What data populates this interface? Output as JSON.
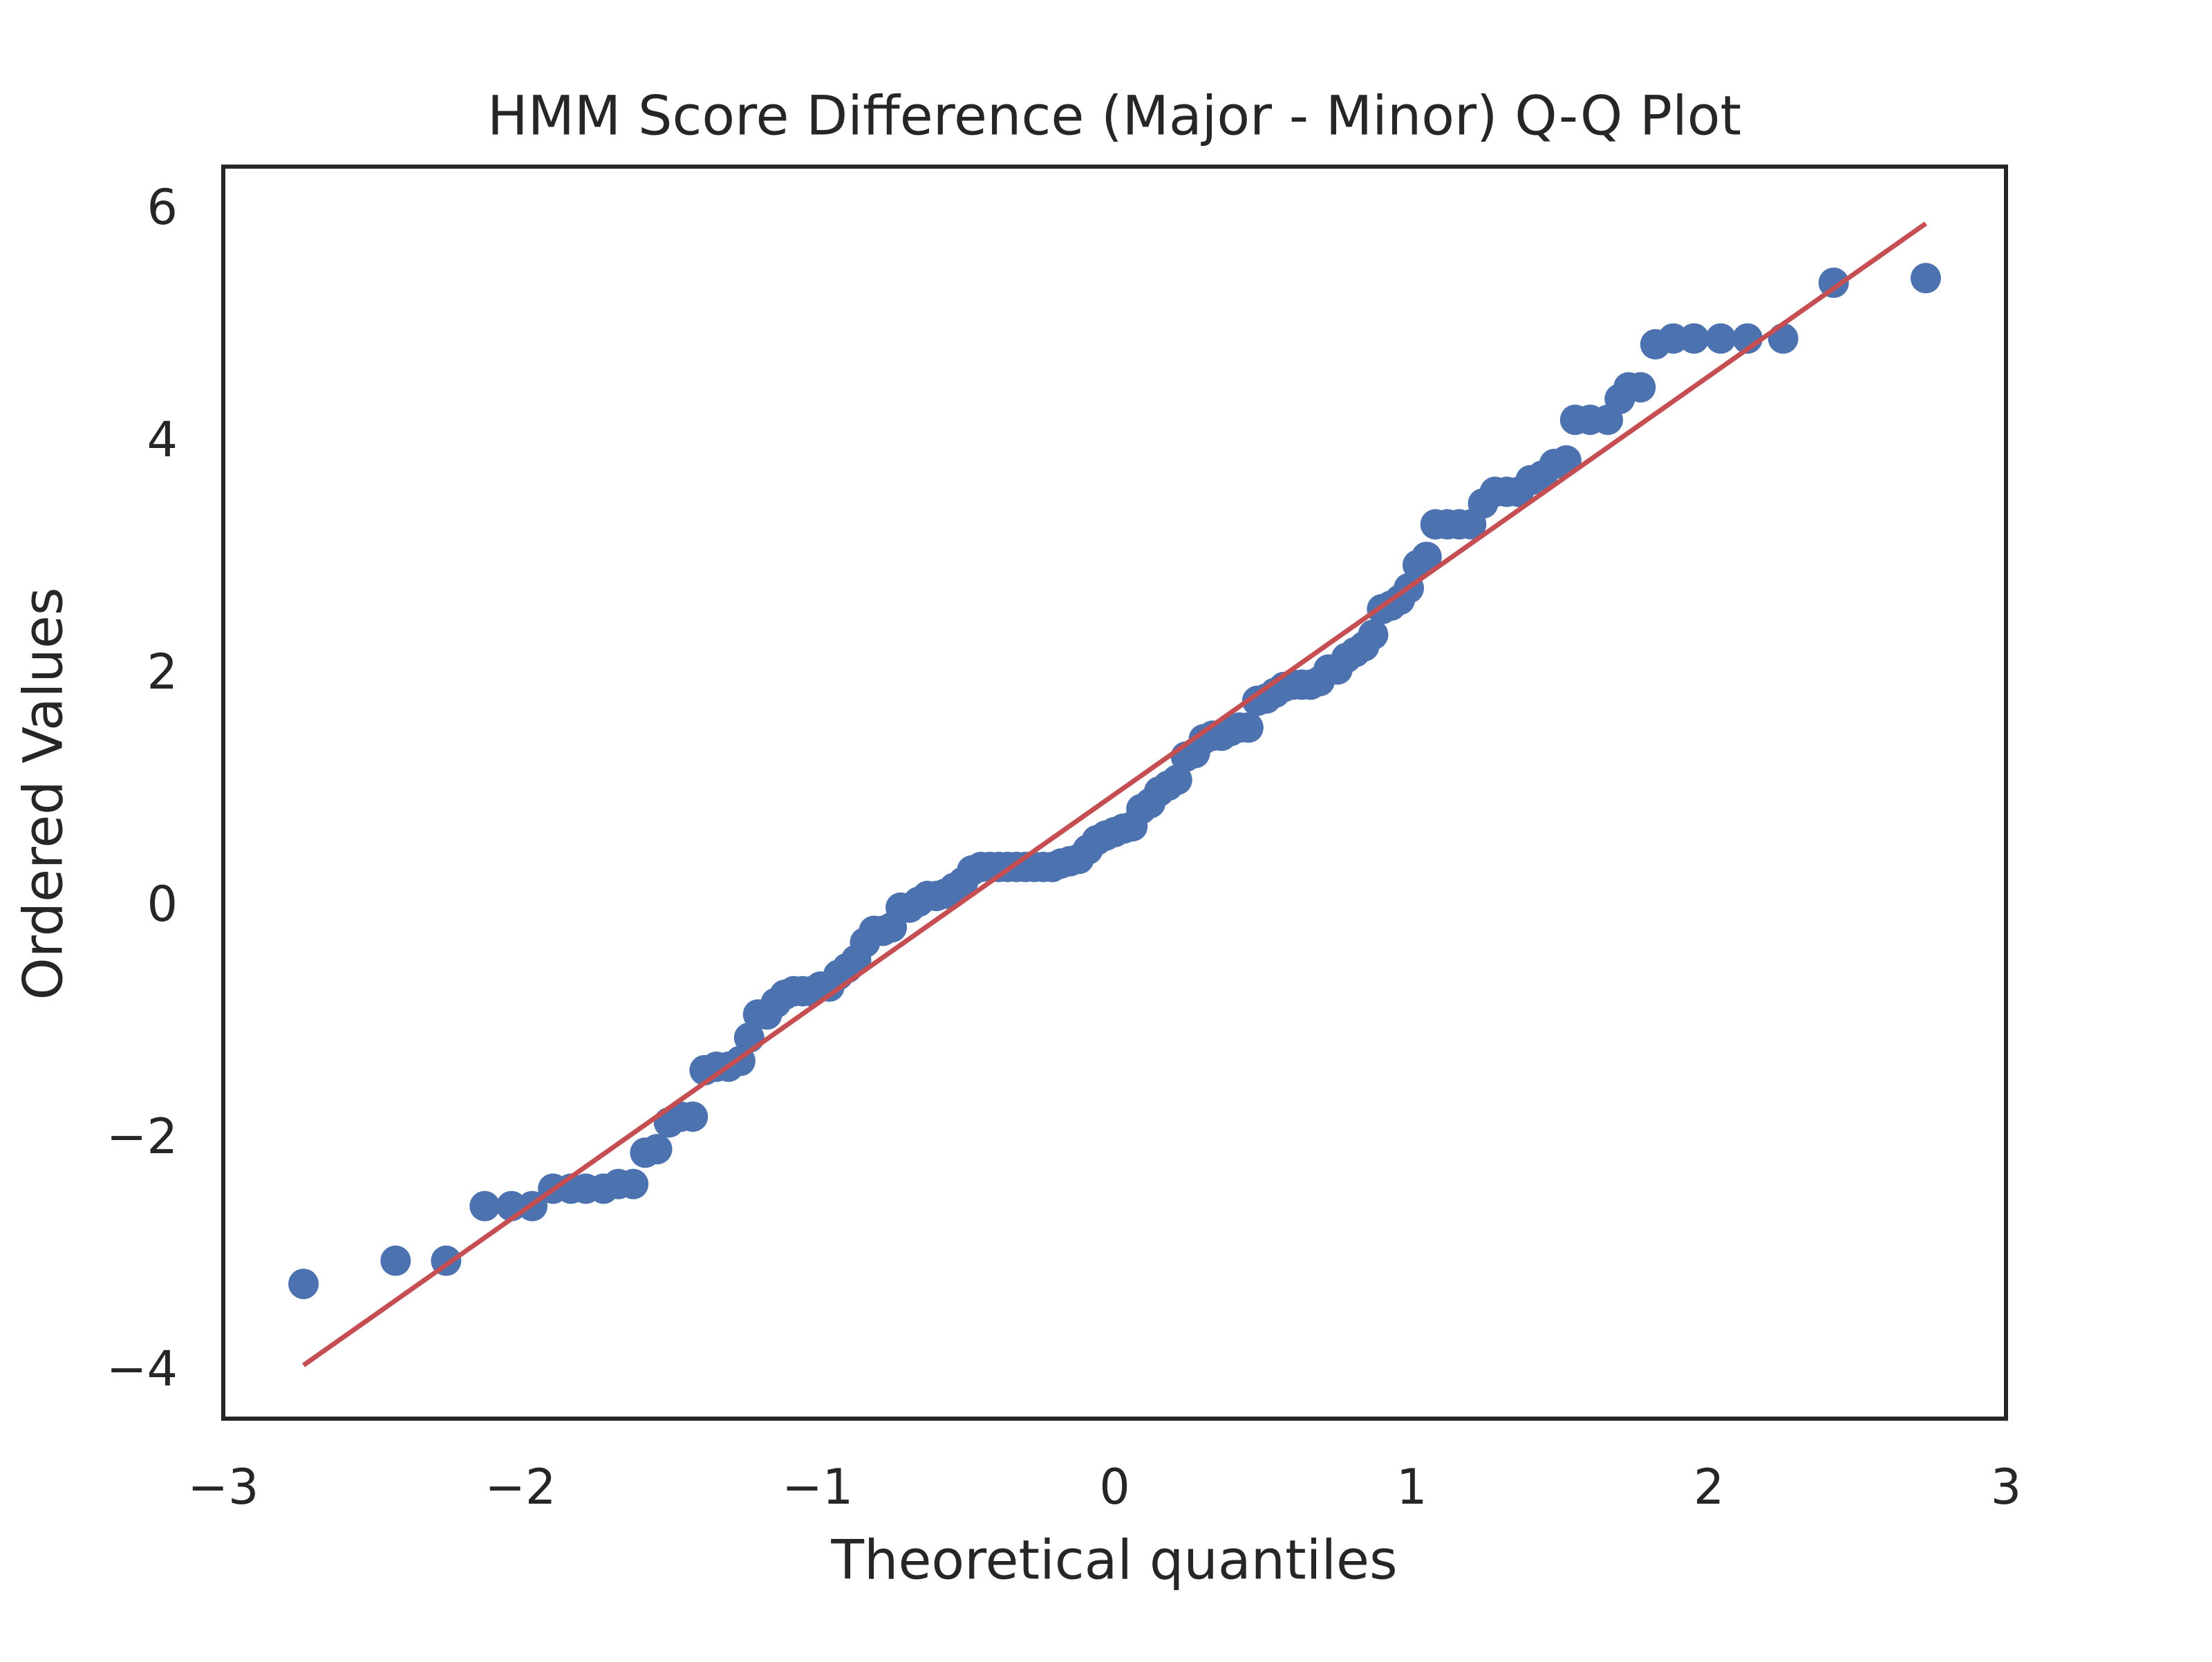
{
  "chart_data": {
    "type": "scatter",
    "title": "HMM Score Difference (Major - Minor) Q-Q Plot",
    "x_label": "Theoretical quantiles",
    "y_label": "Ordered Values",
    "color": "#4c72b0",
    "x": [
      -2.73,
      -2.42,
      -2.25,
      -2.12,
      -2.03,
      -1.96,
      -1.89,
      -1.83,
      -1.78,
      -1.72,
      -1.67,
      -1.62,
      -1.58,
      -1.54,
      -1.5,
      -1.46,
      -1.42,
      -1.38,
      -1.34,
      -1.3,
      -1.26,
      -1.23,
      -1.2,
      -1.17,
      -1.14,
      -1.11,
      -1.08,
      -1.05,
      -1.02,
      -0.99,
      -0.96,
      -0.93,
      -0.9,
      -0.87,
      -0.84,
      -0.81,
      -0.78,
      -0.75,
      -0.72,
      -0.69,
      -0.66,
      -0.63,
      -0.6,
      -0.57,
      -0.54,
      -0.51,
      -0.48,
      -0.45,
      -0.42,
      -0.39,
      -0.36,
      -0.33,
      -0.3,
      -0.27,
      -0.24,
      -0.21,
      -0.18,
      -0.15,
      -0.12,
      -0.09,
      -0.06,
      -0.03,
      0.0,
      0.03,
      0.06,
      0.09,
      0.12,
      0.15,
      0.18,
      0.21,
      0.24,
      0.27,
      0.3,
      0.33,
      0.36,
      0.39,
      0.42,
      0.45,
      0.48,
      0.51,
      0.54,
      0.57,
      0.6,
      0.63,
      0.66,
      0.69,
      0.72,
      0.75,
      0.78,
      0.81,
      0.84,
      0.87,
      0.9,
      0.93,
      0.96,
      0.99,
      1.02,
      1.05,
      1.08,
      1.12,
      1.16,
      1.2,
      1.24,
      1.28,
      1.32,
      1.36,
      1.4,
      1.44,
      1.48,
      1.52,
      1.55,
      1.6,
      1.66,
      1.7,
      1.73,
      1.77,
      1.82,
      1.88,
      1.95,
      2.04,
      2.13,
      2.25,
      2.42,
      2.73
    ],
    "values": [
      -3.24,
      -3.04,
      -3.04,
      -2.57,
      -2.57,
      -2.57,
      -2.42,
      -2.42,
      -2.42,
      -2.42,
      -2.38,
      -2.38,
      -2.11,
      -2.08,
      -1.85,
      -1.8,
      -1.8,
      -1.4,
      -1.37,
      -1.37,
      -1.32,
      -1.12,
      -0.92,
      -0.92,
      -0.82,
      -0.75,
      -0.72,
      -0.72,
      -0.72,
      -0.68,
      -0.68,
      -0.58,
      -0.52,
      -0.45,
      -0.3,
      -0.2,
      -0.2,
      -0.17,
      0.0,
      0.0,
      0.05,
      0.1,
      0.1,
      0.12,
      0.17,
      0.22,
      0.32,
      0.35,
      0.35,
      0.35,
      0.35,
      0.35,
      0.35,
      0.35,
      0.35,
      0.35,
      0.38,
      0.4,
      0.42,
      0.5,
      0.58,
      0.62,
      0.65,
      0.68,
      0.7,
      0.85,
      0.9,
      1.0,
      1.05,
      1.1,
      1.3,
      1.33,
      1.45,
      1.48,
      1.48,
      1.52,
      1.55,
      1.55,
      1.78,
      1.8,
      1.85,
      1.9,
      1.92,
      1.92,
      1.92,
      1.95,
      2.05,
      2.05,
      2.15,
      2.2,
      2.25,
      2.35,
      2.57,
      2.6,
      2.65,
      2.75,
      2.95,
      3.02,
      3.3,
      3.3,
      3.3,
      3.3,
      3.48,
      3.58,
      3.58,
      3.58,
      3.68,
      3.72,
      3.82,
      3.85,
      4.2,
      4.2,
      4.2,
      4.38,
      4.48,
      4.48,
      4.85,
      4.9,
      4.9,
      4.9,
      4.9,
      4.9,
      5.38,
      5.42
    ],
    "line": {
      "color": "#c44e52",
      "x": [
        -2.73,
        2.73
      ],
      "values": [
        -3.94,
        5.89
      ]
    },
    "xlim": [
      -3,
      3
    ],
    "xticks": [
      {
        "value": -3,
        "label": "−3"
      },
      {
        "value": -2,
        "label": "−2"
      },
      {
        "value": -1,
        "label": "−1"
      },
      0,
      1,
      2,
      3
    ],
    "ylim": [
      -4.4,
      6.38
    ],
    "yticks": [
      {
        "value": -4,
        "label": "−4"
      },
      {
        "value": -2,
        "label": "−2"
      },
      0,
      2,
      4,
      6
    ],
    "grid": false
  }
}
